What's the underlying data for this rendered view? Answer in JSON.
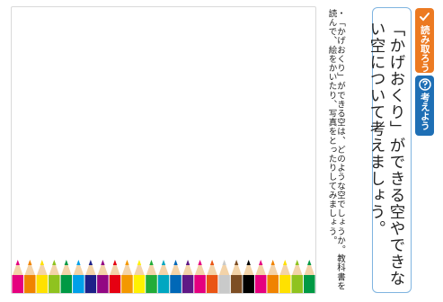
{
  "question": "「かげおくり」ができる空やできない空について考えましょう。",
  "note_bullet": "・",
  "note": "「かげおくり」ができる空は、どのような空でしょうか。教科書を読んで、絵をかいたり、写真をとったりしてみましょう。",
  "badges": {
    "read": {
      "label": "読み取ろう",
      "icon": "pencil-check-icon"
    },
    "think": {
      "label": "考えよう",
      "icon": "question-circle-icon"
    }
  },
  "colors": {
    "read_badge": "#ec7a22",
    "think_badge": "#1e6fb5",
    "question_border": "#7fb4e0",
    "frame_border": "#d9d9d9"
  },
  "pencil_colors": [
    "#e5007f",
    "#f08300",
    "#ffe100",
    "#8fc31f",
    "#009944",
    "#00a0e9",
    "#1d2088",
    "#920783",
    "#e60012",
    "#f39800",
    "#fff100",
    "#22ac38",
    "#00a7c1",
    "#0068b7",
    "#601986",
    "#e4007f",
    "#ea5514",
    "#c9caca",
    "#7d4e24",
    "#000000",
    "#e5007f",
    "#f08300",
    "#ffe100",
    "#8fc31f",
    "#009944"
  ]
}
